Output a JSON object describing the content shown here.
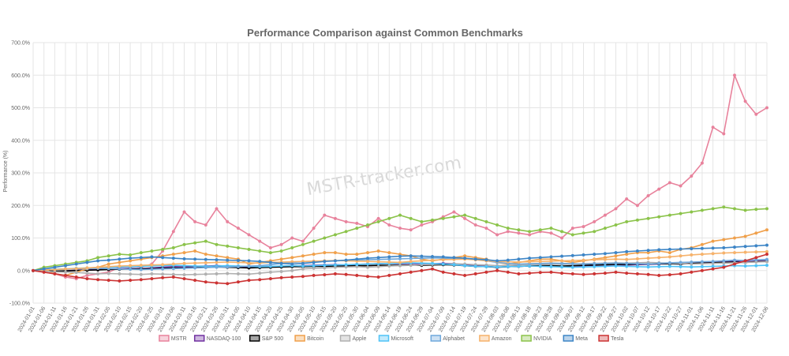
{
  "watermark": "MSTR-tracker.com",
  "chart_data": {
    "type": "line",
    "title": "Performance Comparison against Common Benchmarks",
    "xlabel": "",
    "ylabel": "Performance (%)",
    "ylim": [
      -100,
      700
    ],
    "yticks": [
      -100,
      0,
      100,
      200,
      300,
      400,
      500,
      600,
      700
    ],
    "ytick_labels": [
      "-100.0%",
      "0.0%",
      "100.0%",
      "200.0%",
      "300.0%",
      "400.0%",
      "500.0%",
      "600.0%",
      "700.0%"
    ],
    "grid": true,
    "legend_position": "bottom",
    "x": [
      "2024-01-01",
      "2024-01-06",
      "2024-01-11",
      "2024-01-16",
      "2024-01-21",
      "2024-01-26",
      "2024-01-31",
      "2024-02-05",
      "2024-02-10",
      "2024-02-15",
      "2024-02-20",
      "2024-02-25",
      "2024-03-01",
      "2024-03-06",
      "2024-03-11",
      "2024-03-16",
      "2024-03-21",
      "2024-03-26",
      "2024-03-31",
      "2024-04-05",
      "2024-04-10",
      "2024-04-15",
      "2024-04-20",
      "2024-04-25",
      "2024-04-30",
      "2024-05-05",
      "2024-05-10",
      "2024-05-15",
      "2024-05-20",
      "2024-05-25",
      "2024-05-30",
      "2024-06-04",
      "2024-06-09",
      "2024-06-14",
      "2024-06-19",
      "2024-06-24",
      "2024-06-29",
      "2024-07-04",
      "2024-07-09",
      "2024-07-14",
      "2024-07-19",
      "2024-07-24",
      "2024-07-29",
      "2024-08-03",
      "2024-08-08",
      "2024-08-13",
      "2024-08-18",
      "2024-08-23",
      "2024-08-28",
      "2024-09-02",
      "2024-09-07",
      "2024-09-12",
      "2024-09-17",
      "2024-09-22",
      "2024-09-27",
      "2024-10-02",
      "2024-10-07",
      "2024-10-12",
      "2024-10-17",
      "2024-10-22",
      "2024-10-27",
      "2024-11-01",
      "2024-11-06",
      "2024-11-11",
      "2024-11-16",
      "2024-11-21",
      "2024-11-26",
      "2024-12-01",
      "2024-12-06"
    ],
    "series": [
      {
        "name": "MSTR",
        "color": "#e8829c",
        "values": [
          0,
          -5,
          -10,
          -20,
          -25,
          -15,
          -10,
          -5,
          10,
          15,
          10,
          20,
          60,
          120,
          180,
          150,
          140,
          190,
          150,
          130,
          110,
          90,
          70,
          80,
          100,
          90,
          130,
          170,
          160,
          150,
          145,
          135,
          160,
          140,
          130,
          125,
          140,
          150,
          165,
          180,
          160,
          140,
          130,
          110,
          120,
          115,
          110,
          120,
          115,
          100,
          130,
          135,
          150,
          170,
          190,
          220,
          200,
          230,
          250,
          270,
          260,
          290,
          330,
          440,
          420,
          600,
          520,
          480,
          500
        ]
      },
      {
        "name": "NASDAQ-100",
        "color": "#7030a0",
        "values": [
          0,
          -2,
          -3,
          -1,
          1,
          2,
          3,
          5,
          6,
          7,
          6,
          8,
          10,
          12,
          11,
          13,
          14,
          15,
          14,
          12,
          10,
          11,
          12,
          13,
          14,
          15,
          16,
          17,
          18,
          17,
          19,
          20,
          21,
          22,
          21,
          22,
          20,
          21,
          22,
          21,
          18,
          15,
          13,
          10,
          12,
          13,
          14,
          15,
          14,
          13,
          14,
          15,
          16,
          17,
          18,
          17,
          18,
          19,
          20,
          21,
          20,
          22,
          24,
          26,
          27,
          28,
          27,
          29,
          30
        ]
      },
      {
        "name": "S&P 500",
        "color": "#000000",
        "values": [
          0,
          -1,
          -2,
          -1,
          0,
          1,
          2,
          3,
          4,
          5,
          5,
          6,
          7,
          8,
          8,
          9,
          10,
          11,
          10,
          9,
          8,
          9,
          10,
          11,
          12,
          12,
          13,
          13,
          14,
          14,
          15,
          15,
          16,
          16,
          16,
          17,
          16,
          17,
          18,
          17,
          15,
          13,
          12,
          10,
          12,
          13,
          14,
          15,
          15,
          14,
          15,
          16,
          17,
          18,
          19,
          19,
          20,
          20,
          21,
          21,
          20,
          22,
          23,
          24,
          25,
          26,
          25,
          27,
          28
        ]
      },
      {
        "name": "Bitcoin",
        "color": "#f0a04b",
        "values": [
          0,
          5,
          -10,
          -15,
          -5,
          5,
          10,
          20,
          25,
          30,
          35,
          40,
          45,
          50,
          55,
          60,
          50,
          45,
          40,
          35,
          20,
          25,
          30,
          35,
          40,
          45,
          50,
          55,
          55,
          50,
          50,
          55,
          60,
          55,
          50,
          45,
          35,
          30,
          35,
          40,
          45,
          40,
          35,
          25,
          20,
          25,
          30,
          35,
          35,
          30,
          25,
          30,
          35,
          40,
          45,
          50,
          55,
          55,
          60,
          55,
          65,
          70,
          80,
          90,
          95,
          100,
          105,
          115,
          125
        ]
      },
      {
        "name": "Apple",
        "color": "#b0b0b0",
        "values": [
          0,
          -2,
          -4,
          -5,
          -6,
          -8,
          -10,
          -9,
          -10,
          -11,
          -12,
          -10,
          -11,
          -12,
          -13,
          -12,
          -11,
          -10,
          -9,
          -10,
          -11,
          -8,
          -5,
          -3,
          0,
          5,
          7,
          8,
          10,
          11,
          12,
          10,
          12,
          14,
          15,
          16,
          18,
          19,
          20,
          21,
          20,
          18,
          17,
          15,
          16,
          17,
          18,
          19,
          20,
          19,
          20,
          21,
          22,
          23,
          24,
          23,
          24,
          25,
          24,
          23,
          22,
          20,
          21,
          22,
          23,
          24,
          25,
          26,
          27
        ]
      },
      {
        "name": "Microsoft",
        "color": "#4fc3f7",
        "values": [
          0,
          2,
          4,
          5,
          7,
          8,
          9,
          10,
          11,
          12,
          13,
          14,
          15,
          16,
          15,
          14,
          13,
          14,
          15,
          14,
          13,
          12,
          13,
          14,
          15,
          14,
          15,
          16,
          17,
          18,
          19,
          20,
          21,
          22,
          23,
          24,
          23,
          22,
          20,
          18,
          15,
          13,
          12,
          11,
          12,
          13,
          14,
          13,
          12,
          11,
          10,
          11,
          12,
          13,
          14,
          13,
          12,
          11,
          12,
          13,
          12,
          11,
          12,
          13,
          14,
          15,
          14,
          15,
          16
        ]
      },
      {
        "name": "Alphabet",
        "color": "#6fa8dc",
        "values": [
          0,
          2,
          3,
          4,
          5,
          6,
          7,
          6,
          5,
          4,
          3,
          4,
          5,
          6,
          7,
          8,
          9,
          10,
          11,
          12,
          14,
          15,
          18,
          22,
          25,
          27,
          28,
          29,
          30,
          31,
          32,
          33,
          34,
          35,
          36,
          37,
          38,
          39,
          38,
          37,
          36,
          35,
          30,
          25,
          22,
          20,
          21,
          22,
          23,
          22,
          21,
          20,
          21,
          22,
          23,
          22,
          21,
          20,
          22,
          24,
          25,
          26,
          27,
          28,
          30,
          32,
          31,
          33,
          34
        ]
      },
      {
        "name": "Amazon",
        "color": "#f6b26b",
        "values": [
          0,
          2,
          3,
          5,
          6,
          8,
          10,
          12,
          14,
          15,
          16,
          17,
          18,
          20,
          22,
          23,
          24,
          25,
          26,
          25,
          24,
          23,
          25,
          26,
          27,
          28,
          29,
          30,
          31,
          30,
          29,
          28,
          27,
          26,
          25,
          28,
          30,
          32,
          33,
          34,
          35,
          33,
          30,
          28,
          27,
          26,
          27,
          28,
          29,
          30,
          31,
          32,
          33,
          34,
          35,
          34,
          36,
          38,
          40,
          42,
          45,
          48,
          50,
          52,
          54,
          55,
          56,
          57,
          58
        ]
      },
      {
        "name": "NVIDIA",
        "color": "#8bc34a",
        "values": [
          0,
          10,
          15,
          20,
          25,
          30,
          40,
          45,
          50,
          48,
          55,
          60,
          65,
          70,
          80,
          85,
          90,
          80,
          75,
          70,
          65,
          60,
          55,
          60,
          70,
          80,
          90,
          100,
          110,
          120,
          130,
          140,
          150,
          160,
          170,
          160,
          150,
          155,
          160,
          165,
          170,
          160,
          150,
          140,
          130,
          125,
          120,
          125,
          130,
          120,
          110,
          115,
          120,
          130,
          140,
          150,
          155,
          160,
          165,
          170,
          175,
          180,
          185,
          190,
          195,
          190,
          185,
          188,
          190
        ]
      },
      {
        "name": "Meta",
        "color": "#3d85c6",
        "values": [
          0,
          5,
          10,
          15,
          20,
          25,
          30,
          32,
          35,
          38,
          40,
          42,
          40,
          38,
          36,
          35,
          34,
          33,
          32,
          31,
          30,
          28,
          25,
          22,
          20,
          22,
          25,
          28,
          30,
          32,
          35,
          38,
          40,
          42,
          44,
          45,
          44,
          43,
          42,
          40,
          38,
          35,
          33,
          30,
          32,
          35,
          38,
          40,
          42,
          44,
          46,
          48,
          50,
          52,
          55,
          58,
          60,
          62,
          64,
          65,
          66,
          67,
          68,
          69,
          70,
          72,
          74,
          76,
          78
        ]
      },
      {
        "name": "Tesla",
        "color": "#cc3333",
        "values": [
          0,
          -5,
          -10,
          -15,
          -20,
          -25,
          -28,
          -30,
          -32,
          -30,
          -28,
          -25,
          -22,
          -20,
          -25,
          -30,
          -35,
          -38,
          -40,
          -35,
          -30,
          -28,
          -25,
          -22,
          -20,
          -18,
          -15,
          -13,
          -10,
          -12,
          -15,
          -18,
          -20,
          -15,
          -10,
          -5,
          0,
          5,
          -5,
          -10,
          -15,
          -10,
          -5,
          0,
          -5,
          -10,
          -8,
          -6,
          -5,
          -8,
          -10,
          -12,
          -10,
          -8,
          -5,
          -8,
          -10,
          -12,
          -15,
          -13,
          -10,
          -5,
          0,
          5,
          10,
          20,
          30,
          40,
          50
        ]
      }
    ]
  }
}
